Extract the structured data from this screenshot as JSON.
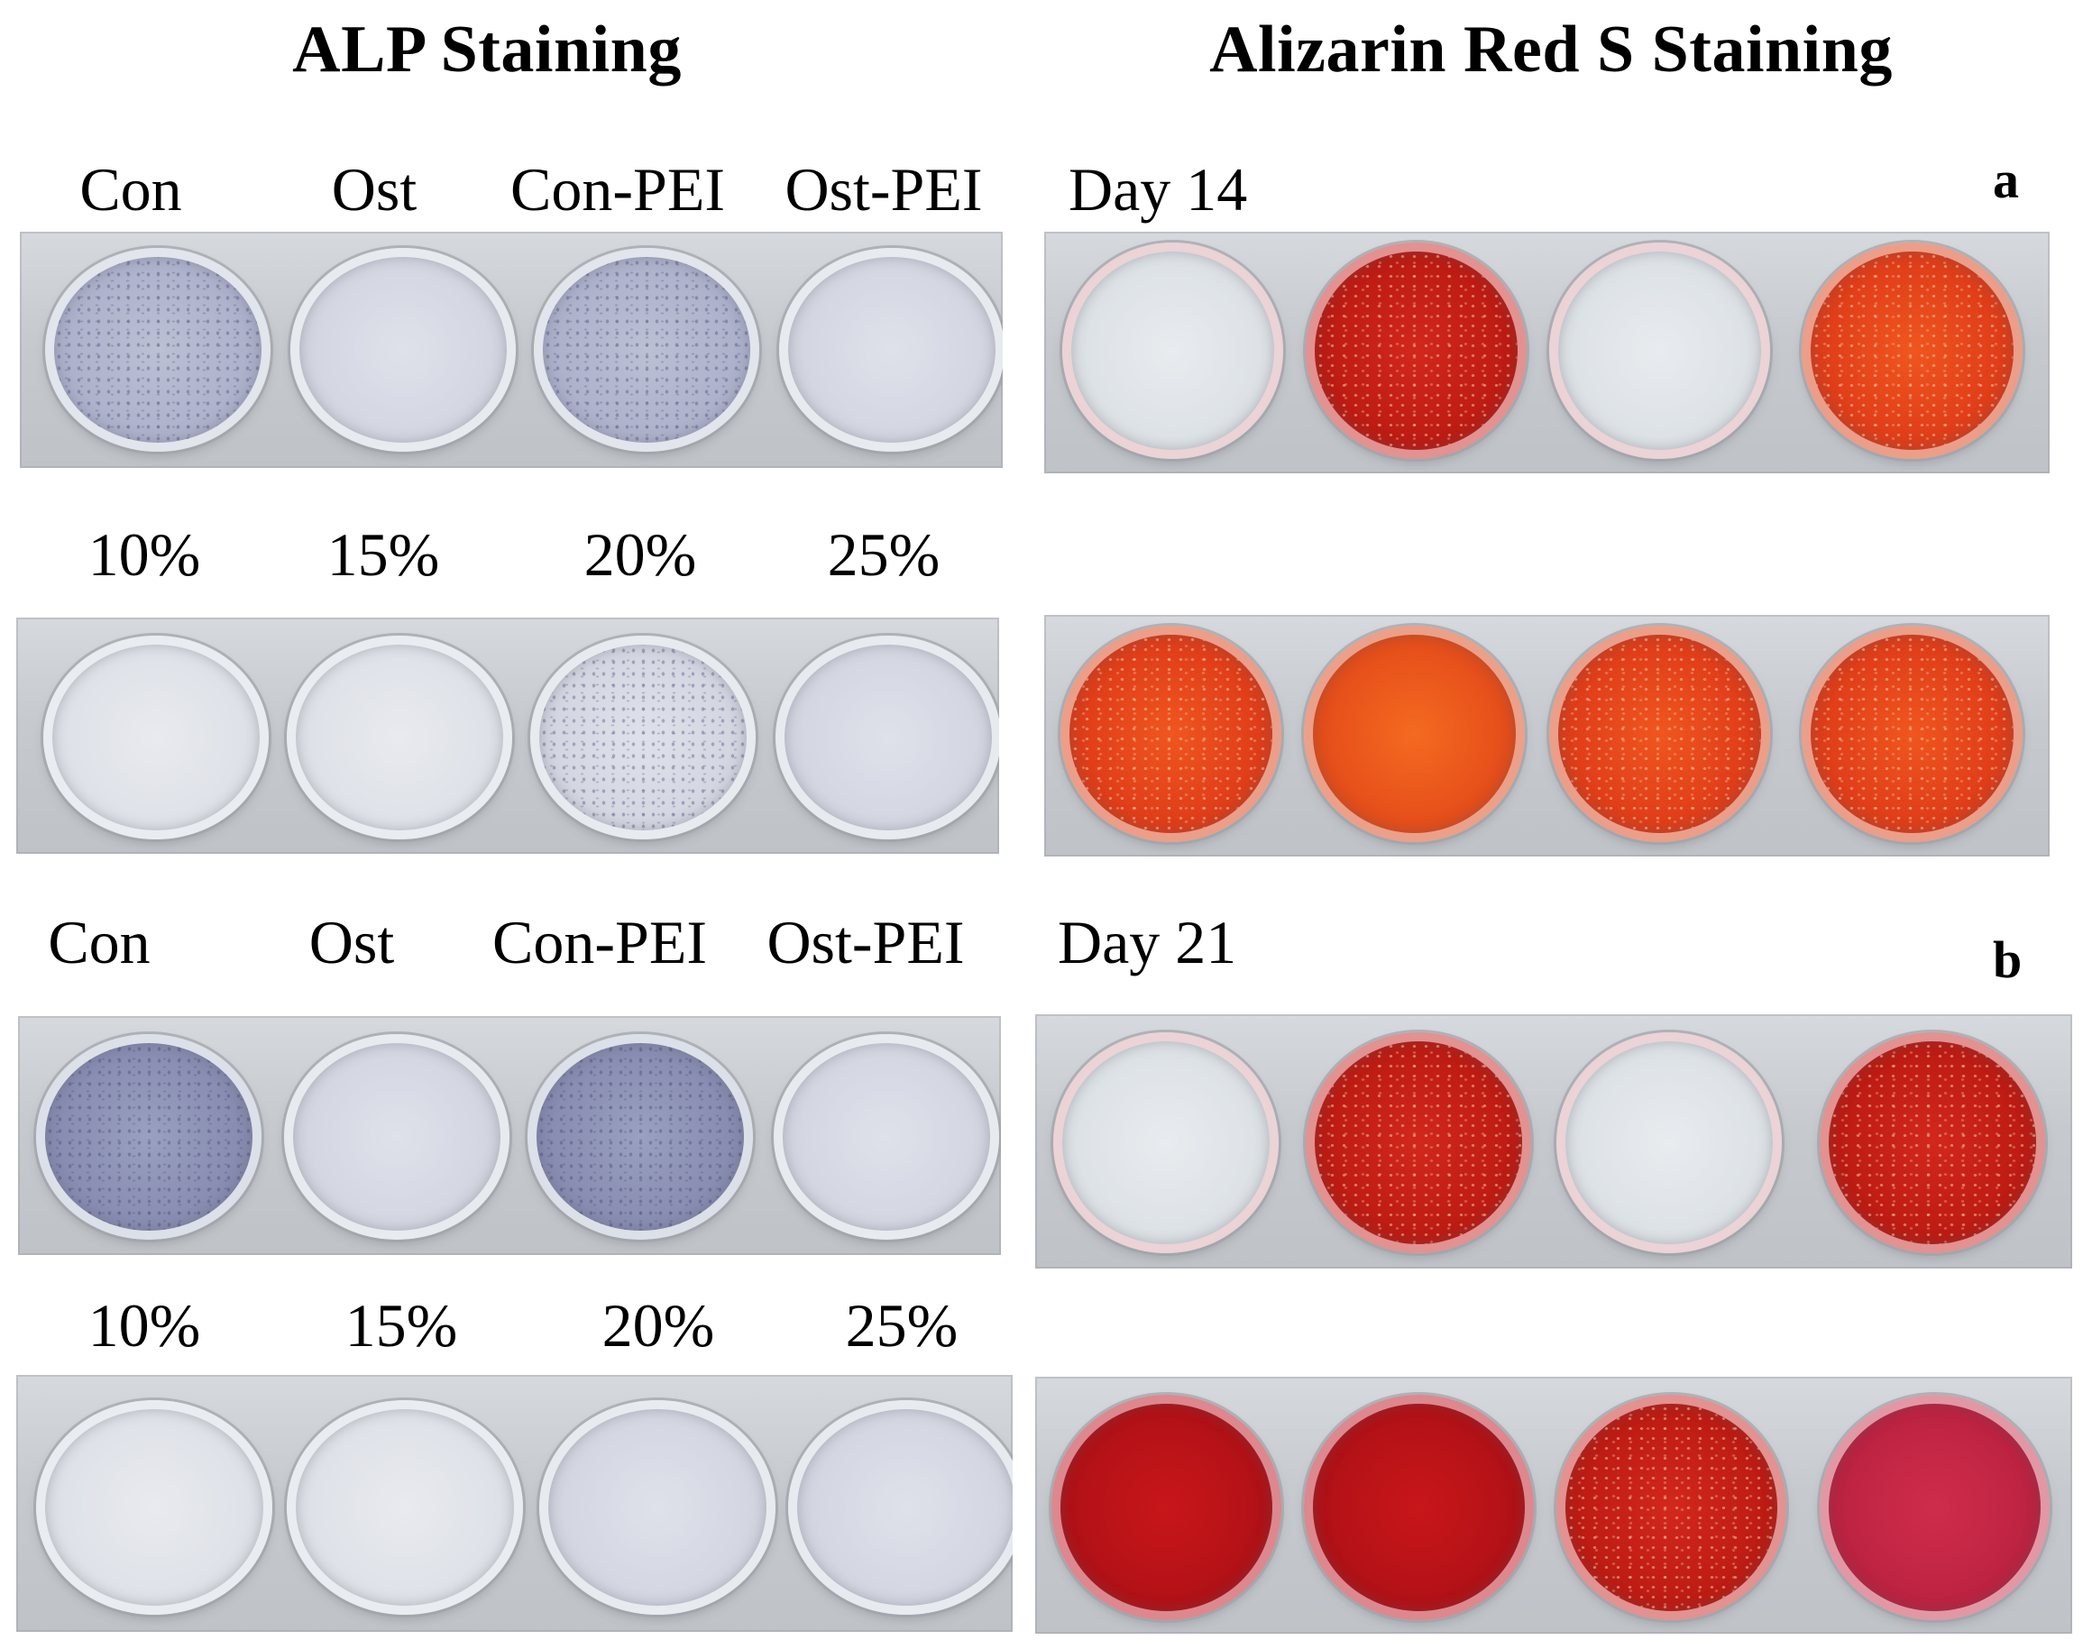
{
  "headings": {
    "alp": "ALP Staining",
    "ars": "Alizarin Red S Staining"
  },
  "label_rows": {
    "row1": [
      "Con",
      "Ost",
      "Con-PEI",
      "Ost-PEI"
    ],
    "row2": [
      "10%",
      "15%",
      "20%",
      "25%"
    ],
    "row3": [
      "Con",
      "Ost",
      "Con-PEI",
      "Ost-PEI"
    ],
    "row4": [
      "10%",
      "15%",
      "20%",
      "25%"
    ]
  },
  "day_labels": {
    "day14": "Day 14",
    "day21": "Day 21"
  },
  "panel_letters": {
    "a": "a",
    "b": "b"
  },
  "well_colors": {
    "alp_stained": "#8a8fb3",
    "alizarin_red": "#c01d14",
    "alizarin_orange": "#e2401a",
    "unstained": "#dde2e6"
  }
}
